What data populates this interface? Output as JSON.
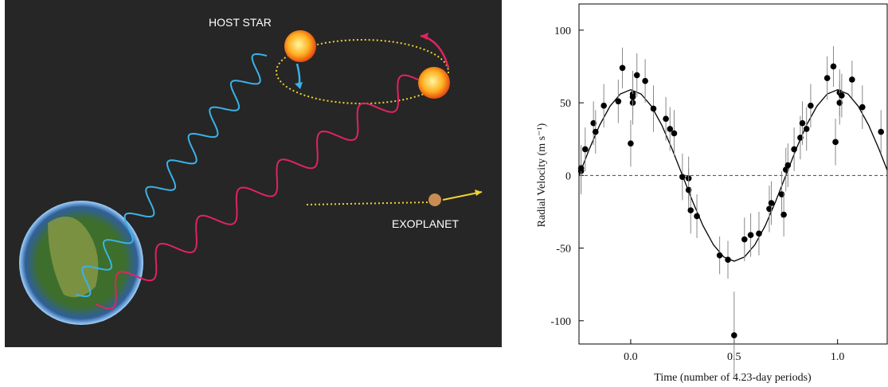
{
  "illustration": {
    "host_star_label": "HOST STAR",
    "exoplanet_label": "EXOPLANET"
  },
  "chart_data": {
    "type": "scatter",
    "xlabel": "Time (number of 4.23-day periods)",
    "ylabel": "Radial Velocity (m s⁻¹)",
    "x": [
      -0.24,
      -0.24,
      -0.22,
      -0.18,
      -0.17,
      -0.13,
      -0.06,
      -0.04,
      0.0,
      0.01,
      0.01,
      0.01,
      0.03,
      0.07,
      0.11,
      0.17,
      0.19,
      0.21,
      0.25,
      0.28,
      0.28,
      0.29,
      0.32,
      0.43,
      0.47,
      0.5,
      0.55,
      0.58,
      0.62,
      0.67,
      0.68,
      0.73,
      0.74,
      0.75,
      0.76,
      0.79,
      0.82,
      0.83,
      0.85,
      0.87,
      0.95,
      0.98,
      0.99,
      1.01,
      1.01,
      1.02,
      1.07,
      1.12,
      1.21
    ],
    "values": [
      3,
      5,
      18,
      36,
      30,
      48,
      51,
      74,
      22,
      56,
      50,
      54,
      69,
      65,
      46,
      39,
      32,
      29,
      -1,
      -2,
      -10,
      -24,
      -28,
      -55,
      -58,
      -110,
      -44,
      -41,
      -40,
      -23,
      -19,
      -13,
      -27,
      4,
      7,
      18,
      26,
      36,
      32,
      48,
      67,
      75,
      23,
      57,
      50,
      55,
      66,
      47,
      30
    ],
    "errors": [
      16,
      16,
      15,
      15,
      15,
      15,
      15,
      14,
      16,
      16,
      15,
      15,
      15,
      15,
      16,
      15,
      15,
      16,
      16,
      15,
      15,
      16,
      15,
      13,
      13,
      30,
      15,
      15,
      15,
      16,
      15,
      16,
      15,
      15,
      15,
      15,
      15,
      15,
      15,
      15,
      15,
      14,
      16,
      16,
      15,
      15,
      13,
      15,
      15
    ],
    "fit": {
      "x": [
        -0.25,
        -0.2,
        -0.15,
        -0.1,
        -0.05,
        0,
        0.05,
        0.1,
        0.15,
        0.2,
        0.25,
        0.3,
        0.35,
        0.4,
        0.45,
        0.5,
        0.55,
        0.6,
        0.65,
        0.7,
        0.75,
        0.8,
        0.85,
        0.9,
        0.95,
        1.0,
        1.05,
        1.1,
        1.15,
        1.2,
        1.24
      ],
      "values": [
        0,
        18.2,
        34.7,
        47.7,
        56.1,
        59,
        56.1,
        47.7,
        34.7,
        18.2,
        0,
        -18.2,
        -34.7,
        -47.7,
        -56.1,
        -59,
        -56.1,
        -47.7,
        -34.7,
        -18.2,
        0,
        18.2,
        34.7,
        47.7,
        56.1,
        59,
        56.1,
        47.7,
        34.7,
        18.2,
        3.7
      ]
    },
    "hline": 0,
    "color": "#000000",
    "error_color": "#888888",
    "xlim": [
      -0.25,
      1.24
    ],
    "ylim": [
      -116,
      118
    ],
    "xticks": [
      {
        "value": 0,
        "label": "0.0"
      },
      0.5,
      {
        "value": 1,
        "label": "1.0"
      }
    ],
    "yticks": [
      100,
      50,
      0,
      -50,
      -100
    ]
  }
}
